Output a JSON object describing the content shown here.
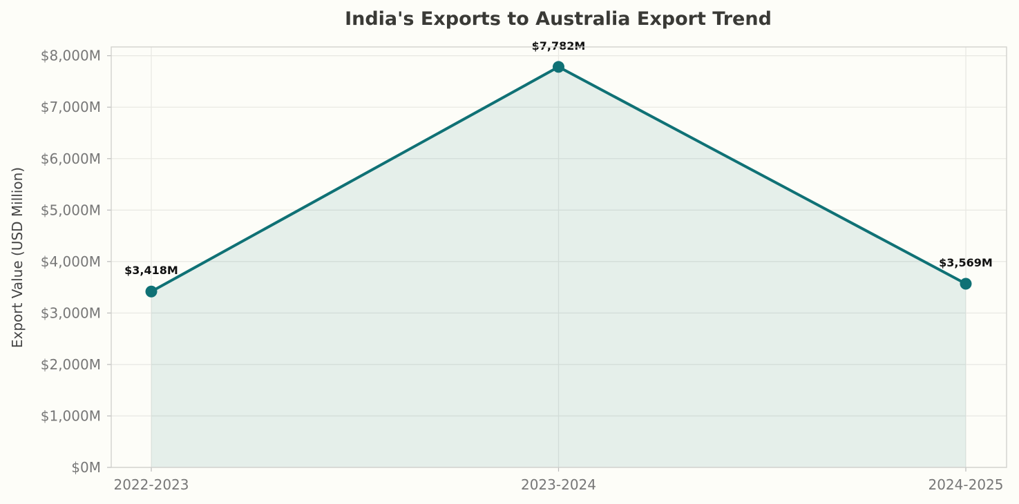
{
  "chart_data": {
    "type": "area",
    "title": "India's Exports to Australia Export Trend",
    "xlabel": "",
    "ylabel": "Export Value (USD Million)",
    "categories": [
      "2022-2023",
      "2023-2024",
      "2024-2025"
    ],
    "series": [
      {
        "values": [
          3418,
          7782,
          3569
        ],
        "value_labels": [
          "$3,418M",
          "$7,782M",
          "$3,569M"
        ],
        "color": "#0f7175"
      }
    ],
    "ylim": [
      0,
      8170
    ],
    "yticks": [
      0,
      1000,
      2000,
      3000,
      4000,
      5000,
      6000,
      7000,
      8000
    ],
    "ytick_labels": [
      "$0M",
      "$1,000M",
      "$2,000M",
      "$3,000M",
      "$4,000M",
      "$5,000M",
      "$6,000M",
      "$7,000M",
      "$8,000M"
    ],
    "grid": true,
    "legend": "none"
  }
}
